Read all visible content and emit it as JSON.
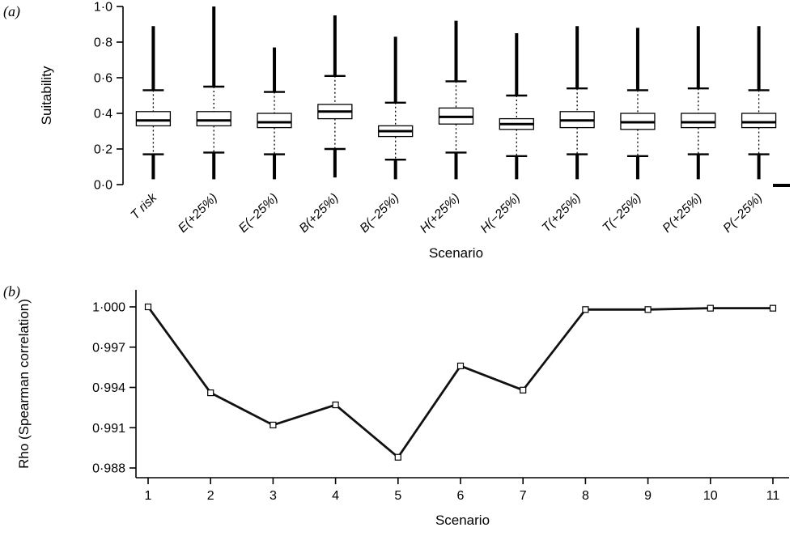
{
  "panels": [
    {
      "label": "(a)"
    },
    {
      "label": "(b)"
    }
  ],
  "chart_data": [
    {
      "type": "boxplot",
      "title": "",
      "xlabel": "Scenario",
      "ylabel": "Suitability",
      "ylim": [
        0.0,
        1.0
      ],
      "yticks": [
        0.0,
        0.2,
        0.4,
        0.6,
        0.8,
        1.0
      ],
      "ytick_labels": [
        "0·0",
        "0·2",
        "0·4",
        "0·6",
        "0·8",
        "1·0"
      ],
      "grid": false,
      "categories": [
        "T risk",
        "E(+25%)",
        "E(−25%)",
        "B(+25%)",
        "B(−25%)",
        "H(+25%)",
        "H(−25%)",
        "T(+25%)",
        "T(−25%)",
        "P(+25%)",
        "P(−25%)"
      ],
      "boxes": [
        {
          "min": 0.03,
          "whisker_low": 0.17,
          "q1": 0.33,
          "median": 0.36,
          "q3": 0.41,
          "whisker_high": 0.53,
          "max": 0.89
        },
        {
          "min": 0.03,
          "whisker_low": 0.18,
          "q1": 0.33,
          "median": 0.36,
          "q3": 0.41,
          "whisker_high": 0.55,
          "max": 1.0
        },
        {
          "min": 0.03,
          "whisker_low": 0.17,
          "q1": 0.32,
          "median": 0.35,
          "q3": 0.4,
          "whisker_high": 0.52,
          "max": 0.77
        },
        {
          "min": 0.04,
          "whisker_low": 0.2,
          "q1": 0.37,
          "median": 0.41,
          "q3": 0.45,
          "whisker_high": 0.61,
          "max": 0.95
        },
        {
          "min": 0.03,
          "whisker_low": 0.14,
          "q1": 0.27,
          "median": 0.3,
          "q3": 0.33,
          "whisker_high": 0.46,
          "max": 0.83
        },
        {
          "min": 0.03,
          "whisker_low": 0.18,
          "q1": 0.34,
          "median": 0.38,
          "q3": 0.43,
          "whisker_high": 0.58,
          "max": 0.92
        },
        {
          "min": 0.03,
          "whisker_low": 0.16,
          "q1": 0.31,
          "median": 0.34,
          "q3": 0.37,
          "whisker_high": 0.5,
          "max": 0.85
        },
        {
          "min": 0.03,
          "whisker_low": 0.17,
          "q1": 0.32,
          "median": 0.36,
          "q3": 0.41,
          "whisker_high": 0.54,
          "max": 0.89
        },
        {
          "min": 0.03,
          "whisker_low": 0.16,
          "q1": 0.31,
          "median": 0.35,
          "q3": 0.4,
          "whisker_high": 0.53,
          "max": 0.88
        },
        {
          "min": 0.03,
          "whisker_low": 0.17,
          "q1": 0.32,
          "median": 0.35,
          "q3": 0.4,
          "whisker_high": 0.54,
          "max": 0.89
        },
        {
          "min": 0.03,
          "whisker_low": 0.17,
          "q1": 0.32,
          "median": 0.35,
          "q3": 0.4,
          "whisker_high": 0.53,
          "max": 0.89
        }
      ]
    },
    {
      "type": "line",
      "title": "",
      "xlabel": "Scenario",
      "ylabel": "Rho (Spearman correlation)",
      "ylim": [
        0.988,
        1.0
      ],
      "yticks": [
        0.988,
        0.991,
        0.994,
        0.997,
        1.0
      ],
      "ytick_labels": [
        "0·988",
        "0·991",
        "0·994",
        "0·997",
        "1·000"
      ],
      "grid": false,
      "x": [
        1,
        2,
        3,
        4,
        5,
        6,
        7,
        8,
        9,
        10,
        11
      ],
      "xtick_labels": [
        "1",
        "2",
        "3",
        "4",
        "5",
        "6",
        "7",
        "8",
        "9",
        "10",
        "11"
      ],
      "y": [
        1.0,
        0.9936,
        0.9912,
        0.9927,
        0.9888,
        0.9956,
        0.9938,
        0.9998,
        0.9998,
        0.9999,
        0.9999
      ],
      "marker": "open-square",
      "line_color": "#111111",
      "legend": "none"
    }
  ]
}
